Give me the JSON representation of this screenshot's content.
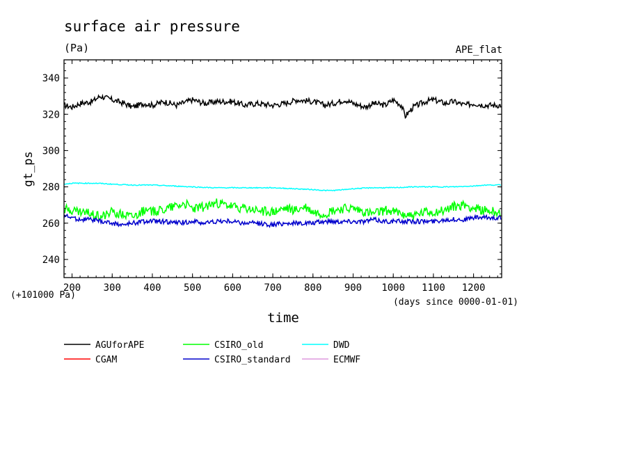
{
  "chart_data": {
    "type": "line",
    "title": "surface air pressure",
    "subtitle": "(Pa)",
    "experiment": "APE_flat",
    "xlabel": "time",
    "xunits": "(days since 0000-01-01)",
    "ylabel": "gt_ps",
    "yoffset_label": "(+101000 Pa)",
    "xlim": [
      180,
      1270
    ],
    "ylim": [
      230,
      350
    ],
    "xticks": [
      200,
      300,
      400,
      500,
      600,
      700,
      800,
      900,
      1000,
      1100,
      1200
    ],
    "yticks": [
      240,
      260,
      280,
      300,
      320,
      340
    ],
    "grid": false,
    "legend_position": "bottom",
    "series": [
      {
        "name": "AGUforAPE",
        "color": "#000000",
        "x": [
          180,
          200,
          220,
          250,
          270,
          300,
          330,
          350,
          380,
          400,
          430,
          460,
          500,
          530,
          560,
          600,
          630,
          660,
          700,
          730,
          760,
          800,
          830,
          850,
          880,
          900,
          930,
          950,
          980,
          1000,
          1020,
          1030,
          1050,
          1080,
          1100,
          1130,
          1150,
          1180,
          1200,
          1230,
          1260
        ],
        "y": [
          325,
          324,
          326,
          327,
          330,
          328,
          326,
          324,
          326,
          325,
          327,
          325,
          328,
          326,
          327,
          327,
          325,
          326,
          325,
          326,
          328,
          327,
          325,
          326,
          328,
          326,
          324,
          326,
          325,
          328,
          325,
          319,
          324,
          327,
          328,
          326,
          327,
          325,
          326,
          325,
          325
        ]
      },
      {
        "name": "CGAM",
        "color": "#ff0000",
        "x": [],
        "y": []
      },
      {
        "name": "CSIRO_old",
        "color": "#00ff00",
        "x": [
          180,
          200,
          220,
          250,
          270,
          300,
          330,
          350,
          380,
          400,
          430,
          460,
          480,
          500,
          530,
          560,
          580,
          600,
          630,
          660,
          700,
          730,
          760,
          780,
          800,
          830,
          850,
          880,
          900,
          930,
          950,
          980,
          1000,
          1030,
          1050,
          1080,
          1100,
          1130,
          1150,
          1180,
          1200,
          1230,
          1260
        ],
        "y": [
          268,
          267,
          266,
          265,
          264,
          266,
          265,
          264,
          267,
          266,
          268,
          270,
          271,
          268,
          269,
          271,
          270,
          269,
          268,
          267,
          266,
          268,
          267,
          269,
          266,
          265,
          267,
          268,
          268,
          266,
          265,
          267,
          266,
          265,
          264,
          266,
          266,
          267,
          269,
          270,
          268,
          267,
          266
        ]
      },
      {
        "name": "CSIRO_standard",
        "color": "#0000cc",
        "x": [
          180,
          200,
          220,
          250,
          270,
          300,
          330,
          350,
          380,
          400,
          430,
          460,
          500,
          530,
          560,
          600,
          630,
          660,
          700,
          730,
          760,
          800,
          830,
          850,
          880,
          900,
          930,
          950,
          980,
          1000,
          1030,
          1050,
          1080,
          1100,
          1130,
          1150,
          1180,
          1200,
          1230,
          1260
        ],
        "y": [
          264,
          263,
          262,
          262,
          261,
          260,
          259,
          260,
          261,
          261,
          261,
          260,
          261,
          260,
          261,
          261,
          260,
          260,
          259,
          260,
          260,
          260,
          261,
          261,
          261,
          261,
          261,
          262,
          261,
          261,
          261,
          261,
          261,
          261,
          262,
          262,
          262,
          263,
          263,
          263
        ]
      },
      {
        "name": "DWD",
        "color": "#00ffff",
        "x": [
          180,
          200,
          230,
          260,
          300,
          350,
          400,
          450,
          500,
          550,
          600,
          650,
          700,
          750,
          800,
          830,
          850,
          880,
          900,
          950,
          1000,
          1050,
          1100,
          1150,
          1200,
          1230,
          1260
        ],
        "y": [
          281.5,
          282,
          282,
          282,
          281.5,
          281,
          281,
          280.5,
          280,
          279.5,
          279.5,
          279.5,
          279.5,
          279,
          278.5,
          278,
          278,
          278.5,
          279,
          279.5,
          279.5,
          280,
          280,
          280,
          280.5,
          281,
          281
        ]
      },
      {
        "name": "ECMWF",
        "color": "#dd99dd",
        "x": [],
        "y": []
      }
    ]
  }
}
